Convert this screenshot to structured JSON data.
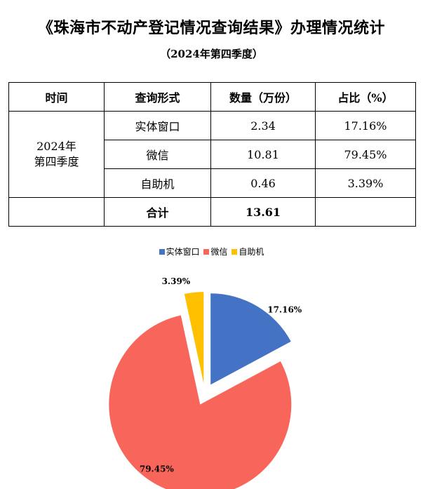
{
  "header": {
    "title": "《珠海市不动产登记情况查询结果》办理情况统计",
    "subtitle": "（2024年第四季度）"
  },
  "table": {
    "headers": [
      "时间",
      "查询形式",
      "数量（万份）",
      "占比（%）"
    ],
    "period": [
      "2024年",
      "第四季度"
    ],
    "rows": [
      {
        "channel": "实体窗口",
        "count": "2.34",
        "share": "17.16%"
      },
      {
        "channel": "微信",
        "count": "10.81",
        "share": "79.45%"
      },
      {
        "channel": "自助机",
        "count": "0.46",
        "share": "3.39%"
      }
    ],
    "total_label": "合计",
    "total_value": "13.61"
  },
  "chart_data": {
    "type": "pie",
    "categories": [
      "实体窗口",
      "微信",
      "自助机"
    ],
    "values": [
      17.16,
      79.45,
      3.39
    ],
    "labels": [
      "17.16%",
      "79.45%",
      "3.39%"
    ],
    "colors": [
      "#4472C4",
      "#F8665B",
      "#FFC000"
    ],
    "legend_position": "top",
    "exploded": true
  }
}
